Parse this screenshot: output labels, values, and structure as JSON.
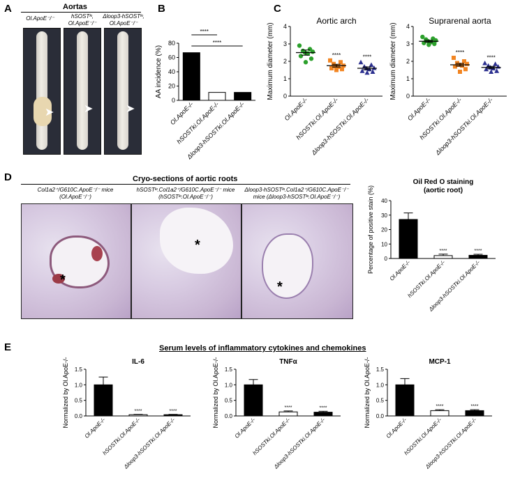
{
  "panelA": {
    "letter": "A",
    "title": "Aortas",
    "groups": [
      {
        "line1": "Ol.ApoE⁻/⁻",
        "line2": ""
      },
      {
        "line1": "hSOSTᵏᶦ,",
        "line2": "Ol.ApoE⁻/⁻"
      },
      {
        "line1": "Δloop3-hSOSTᵏᶦ,",
        "line2": "Ol.ApoE⁻/⁻"
      }
    ]
  },
  "panelB": {
    "letter": "B"
  },
  "panelC": {
    "letter": "C"
  },
  "panelD": {
    "letter": "D",
    "title": "Cryo-sections of aortic roots",
    "captions": [
      {
        "line1": "Col1a2⁺/G610C.ApoE⁻/⁻ mice",
        "line2": "(Ol.ApoE⁻/⁻)"
      },
      {
        "line1": "hSOSTᵏᶦ.Col1a2⁺/G610C.ApoE⁻/⁻ mice",
        "line2": "(hSOSTᵏᶦ.Ol.ApoE⁻/⁻)"
      },
      {
        "line1": "Δloop3-hSOSTᵏᶦ.Col1a2⁺/G610C.ApoE⁻/⁻",
        "line2": "mice (Δloop3-hSOSTᵏᶦ.Ol.ApoE⁻/⁻)"
      }
    ],
    "lumen_mark": "*"
  },
  "panelE": {
    "letter": "E",
    "title": "Serum levels of inflammatory cytokines and chemokines"
  },
  "chart_data": [
    {
      "id": "B",
      "type": "bar",
      "categories": [
        "Ol.ApoE-/-",
        "hSOSTki.Ol.ApoE-/-",
        "Δloop3-hSOSTki.Ol.ApoE-/-"
      ],
      "values": [
        66.7,
        11.1,
        11.1
      ],
      "fills": [
        "#000000",
        "#ffffff",
        "#000000"
      ],
      "ylabel": "AA incidence (%)",
      "ylim": [
        0,
        80
      ],
      "yticks": [
        0,
        20,
        40,
        60,
        80
      ],
      "significance": [
        {
          "from": 0,
          "to": 1,
          "label": "****"
        },
        {
          "from": 0,
          "to": 2,
          "label": "****"
        }
      ]
    },
    {
      "id": "C1",
      "type": "scatter",
      "title": "Aortic arch",
      "ylabel": "Maximum diameter (mm)",
      "ylim": [
        0,
        4
      ],
      "yticks": [
        0,
        1,
        2,
        3,
        4
      ],
      "categories": [
        "Ol.ApoE-/-",
        "hSOSTki.Ol.ApoE-/-",
        "Δloop3-hSOSTki.Ol.ApoE-/-"
      ],
      "series": [
        {
          "color": "#2ca02c",
          "marker": "circle",
          "mean": 2.5,
          "sem": 0.15,
          "values": [
            2.9,
            2.7,
            2.6,
            2.55,
            2.5,
            2.45,
            2.3,
            2.15,
            1.95
          ]
        },
        {
          "color": "#f28522",
          "marker": "square",
          "mean": 1.75,
          "sem": 0.08,
          "values": [
            2.05,
            1.95,
            1.85,
            1.75,
            1.72,
            1.68,
            1.6,
            1.55,
            1.5
          ],
          "label": "****"
        },
        {
          "color": "#2b2f8f",
          "marker": "triangle",
          "mean": 1.6,
          "sem": 0.08,
          "values": [
            1.95,
            1.8,
            1.7,
            1.62,
            1.6,
            1.55,
            1.45,
            1.4,
            1.35
          ],
          "label": "****"
        }
      ]
    },
    {
      "id": "C2",
      "type": "scatter",
      "title": "Suprarenal aorta",
      "ylabel": "Maximum diameter (mm)",
      "ylim": [
        0,
        4
      ],
      "yticks": [
        0,
        1,
        2,
        3,
        4
      ],
      "categories": [
        "Ol.ApoE-/-",
        "hSOSTki.Ol.ApoE-/-",
        "Δloop3-hSOSTki.Ol.ApoE-/-"
      ],
      "series": [
        {
          "color": "#2ca02c",
          "marker": "circle",
          "mean": 3.15,
          "sem": 0.06,
          "values": [
            3.4,
            3.3,
            3.25,
            3.2,
            3.15,
            3.1,
            3.05,
            3.0,
            2.95
          ]
        },
        {
          "color": "#f28522",
          "marker": "square",
          "mean": 1.8,
          "sem": 0.08,
          "values": [
            2.2,
            2.0,
            1.9,
            1.85,
            1.8,
            1.75,
            1.7,
            1.55,
            1.4
          ],
          "label": "****"
        },
        {
          "color": "#2b2f8f",
          "marker": "triangle",
          "mean": 1.65,
          "sem": 0.06,
          "values": [
            1.9,
            1.85,
            1.75,
            1.7,
            1.65,
            1.6,
            1.55,
            1.45,
            1.4
          ],
          "label": "****"
        }
      ]
    },
    {
      "id": "D",
      "type": "bar",
      "title": "Oil Red O staining\n(aortic root)",
      "ylabel": "Percentage of positive stain (%)",
      "ylim": [
        0,
        40
      ],
      "yticks": [
        0,
        10,
        20,
        30,
        40
      ],
      "categories": [
        "Ol.ApoE-/-",
        "hSOSTki.Ol.ApoE-/-",
        "Δloop3-hSOSTki.Ol.ApoE-/-"
      ],
      "values": [
        27.0,
        2.0,
        2.2
      ],
      "errors": [
        4.5,
        1.0,
        0.7
      ],
      "fills": [
        "#000000",
        "#ffffff",
        "#000000"
      ],
      "labels": [
        "",
        "****",
        "****"
      ]
    },
    {
      "id": "E1",
      "type": "bar",
      "title": "IL-6",
      "ylabel": "Normalized by Ol.ApoE-/-",
      "ylim": [
        0,
        1.5
      ],
      "yticks": [
        0.0,
        0.5,
        1.0,
        1.5
      ],
      "categories": [
        "Ol.ApoE-/-",
        "hSOSTki.Ol.ApoE-/-",
        "Δloop3-hSOSTki.Ol.ApoE-/-"
      ],
      "values": [
        1.0,
        0.04,
        0.04
      ],
      "errors": [
        0.25,
        0.01,
        0.01
      ],
      "fills": [
        "#000000",
        "#ffffff",
        "#000000"
      ],
      "labels": [
        "",
        "****",
        "****"
      ]
    },
    {
      "id": "E2",
      "type": "bar",
      "title": "TNFα",
      "ylabel": "Normalized by Ol.ApoE-/-",
      "ylim": [
        0,
        1.5
      ],
      "yticks": [
        0.0,
        0.5,
        1.0,
        1.5
      ],
      "categories": [
        "Ol.ApoE-/-",
        "hSOSTki.Ol.ApoE-/-",
        "Δloop3-hSOSTki.Ol.ApoE-/-"
      ],
      "values": [
        1.0,
        0.13,
        0.12
      ],
      "errors": [
        0.17,
        0.03,
        0.03
      ],
      "fills": [
        "#000000",
        "#ffffff",
        "#000000"
      ],
      "labels": [
        "",
        "****",
        "****"
      ]
    },
    {
      "id": "E3",
      "type": "bar",
      "title": "MCP-1",
      "ylabel": "Normalized by Ol.ApoE-/-",
      "ylim": [
        0,
        1.5
      ],
      "yticks": [
        0.0,
        0.5,
        1.0,
        1.5
      ],
      "categories": [
        "Ol.ApoE-/-",
        "hSOSTki.Ol.ApoE-/-",
        "Δloop3-hSOSTki.Ol.ApoE-/-"
      ],
      "values": [
        1.0,
        0.17,
        0.17
      ],
      "errors": [
        0.2,
        0.03,
        0.03
      ],
      "fills": [
        "#000000",
        "#ffffff",
        "#000000"
      ],
      "labels": [
        "",
        "****",
        "****"
      ]
    }
  ]
}
